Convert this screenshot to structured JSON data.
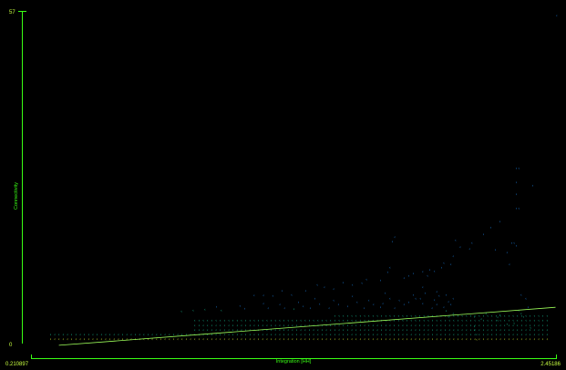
{
  "chart_data": {
    "type": "scatter",
    "title": "",
    "xlabel": "Integration [HH]",
    "ylabel": "Connectivity",
    "x_min_label": "0.210897",
    "x_max_label": "2.45186",
    "y_min_label": "0",
    "y_max_label": "57",
    "xlim": [
      0.210897,
      2.45186
    ],
    "ylim": [
      0,
      57
    ],
    "grid": false,
    "legend": "none",
    "point_symbol": "‹",
    "colors": {
      "background": "#000000",
      "axis": "#39ff14",
      "tick_text": "#c8ff40",
      "regression": "#9dff5a",
      "low": "#e8ff30",
      "mid": "#18d8a8",
      "high": "#1e90ff"
    },
    "regression": {
      "x": [
        0.33,
        2.45
      ],
      "y": [
        -0.3,
        6.3
      ]
    },
    "points": [
      [
        2.45186,
        57
      ],
      [
        2.35,
        27.5
      ],
      [
        2.28,
        30.5
      ],
      [
        2.29,
        30.5
      ],
      [
        2.28,
        28
      ],
      [
        2.28,
        26
      ],
      [
        2.28,
        23.5
      ],
      [
        2.29,
        23.5
      ],
      [
        2.21,
        21.2
      ],
      [
        2.17,
        20.2
      ],
      [
        2.14,
        19
      ],
      [
        2.09,
        17.5
      ],
      [
        2.08,
        16.5
      ],
      [
        2.26,
        17.5
      ],
      [
        2.27,
        17.5
      ],
      [
        2.19,
        16.3
      ],
      [
        2.24,
        15.8
      ],
      [
        2.28,
        17
      ],
      [
        2.25,
        13.8
      ],
      [
        2.02,
        18
      ],
      [
        2.04,
        16.8
      ],
      [
        2.01,
        15.2
      ],
      [
        2.0,
        13.8
      ],
      [
        1.97,
        14
      ],
      [
        1.96,
        13.2
      ],
      [
        1.93,
        12.6
      ],
      [
        1.91,
        12.8
      ],
      [
        1.9,
        11.8
      ],
      [
        1.88,
        12.5
      ],
      [
        1.84,
        12.2
      ],
      [
        1.82,
        11.8
      ],
      [
        1.8,
        11.4
      ],
      [
        1.76,
        18.5
      ],
      [
        1.75,
        17.7
      ],
      [
        1.74,
        13.2
      ],
      [
        1.73,
        12.4
      ],
      [
        1.7,
        11
      ],
      [
        1.64,
        11.2
      ],
      [
        1.62,
        10.5
      ],
      [
        1.58,
        10.2
      ],
      [
        1.54,
        10.6
      ],
      [
        1.5,
        9.5
      ],
      [
        1.46,
        9.8
      ],
      [
        1.43,
        10.2
      ],
      [
        1.38,
        9.2
      ],
      [
        1.32,
        8.5
      ],
      [
        1.28,
        9.2
      ],
      [
        1.24,
        8.3
      ],
      [
        1.2,
        8.4
      ],
      [
        1.16,
        8.4
      ],
      [
        2.27,
        3.6
      ],
      [
        2.24,
        3.4
      ],
      [
        2.21,
        5
      ],
      [
        2.2,
        4.6
      ],
      [
        2.2,
        4
      ],
      [
        2.15,
        5.2
      ],
      [
        2.13,
        4.3
      ],
      [
        2.1,
        4.7
      ],
      [
        2.1,
        3
      ],
      [
        2.1,
        2.4
      ],
      [
        2.11,
        1.6
      ],
      [
        2.11,
        0.7
      ],
      [
        2.34,
        2.8
      ],
      [
        2.3,
        8.5
      ],
      [
        2.32,
        7.8
      ],
      [
        2.33,
        6.3
      ],
      [
        2.29,
        5.8
      ],
      [
        2.3,
        5.2
      ],
      [
        2.31,
        4.7
      ],
      [
        1.98,
        8.5
      ],
      [
        2.01,
        7.8
      ],
      [
        1.99,
        7.3
      ],
      [
        2.0,
        6.8
      ],
      [
        1.97,
        6.3
      ],
      [
        1.98,
        5.7
      ],
      [
        2.01,
        5.2
      ],
      [
        1.99,
        4.7
      ],
      [
        1.94,
        9
      ],
      [
        1.95,
        8.3
      ],
      [
        1.93,
        7.6
      ],
      [
        1.94,
        6.8
      ],
      [
        1.92,
        6.2
      ],
      [
        1.88,
        9.8
      ],
      [
        1.89,
        8.8
      ],
      [
        1.87,
        7.8
      ],
      [
        1.88,
        7
      ],
      [
        1.84,
        8.5
      ],
      [
        1.85,
        7.8
      ],
      [
        1.82,
        7.2
      ],
      [
        1.78,
        7.5
      ],
      [
        1.8,
        6.8
      ],
      [
        1.76,
        6.2
      ],
      [
        1.72,
        8.8
      ],
      [
        1.74,
        7.8
      ],
      [
        1.71,
        7
      ],
      [
        1.7,
        6.3
      ],
      [
        1.65,
        7.5
      ],
      [
        1.67,
        6.8
      ],
      [
        1.63,
        6.2
      ],
      [
        1.58,
        8.2
      ],
      [
        1.6,
        7.2
      ],
      [
        1.56,
        6.5
      ],
      [
        1.5,
        7.5
      ],
      [
        1.52,
        6.8
      ],
      [
        1.48,
        6.2
      ],
      [
        1.42,
        7.8
      ],
      [
        1.44,
        6.9
      ],
      [
        1.4,
        6.2
      ],
      [
        1.35,
        7.2
      ],
      [
        1.37,
        6.5
      ],
      [
        1.33,
        6
      ],
      [
        1.27,
        6.8
      ],
      [
        1.29,
        6.2
      ],
      [
        1.2,
        7
      ],
      [
        1.22,
        6.2
      ],
      [
        1.1,
        6.6
      ],
      [
        1.12,
        6.1
      ],
      [
        1.0,
        6.4
      ],
      [
        1.02,
        5.8
      ],
      [
        0.95,
        5.9
      ],
      [
        0.9,
        5.8
      ],
      [
        0.85,
        5.6
      ]
    ]
  }
}
